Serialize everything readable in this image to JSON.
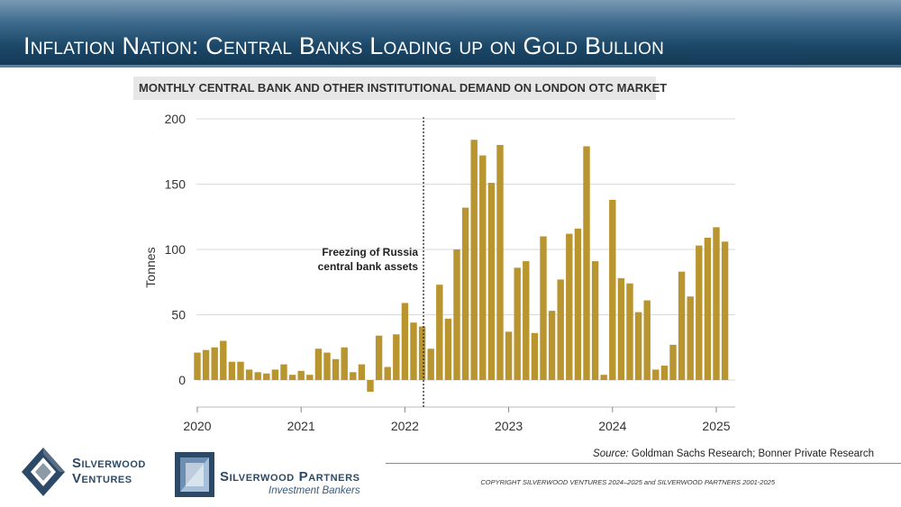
{
  "page": {
    "title": "Inflation Nation: Central Banks Loading up on Gold Bullion"
  },
  "chart_data": {
    "type": "bar",
    "title": "MONTHLY CENTRAL BANK AND OTHER INSTITUTIONAL DEMAND ON LONDON OTC MARKET",
    "xlabel": "",
    "ylabel": "Tonnes",
    "ylim": [
      -20,
      200
    ],
    "yticks": [
      0,
      50,
      100,
      150,
      200
    ],
    "xticks": [
      {
        "label": "2020",
        "index": 0
      },
      {
        "label": "2021",
        "index": 12
      },
      {
        "label": "2022",
        "index": 24
      },
      {
        "label": "2023",
        "index": 36
      },
      {
        "label": "2024",
        "index": 48
      },
      {
        "label": "2025",
        "index": 60
      }
    ],
    "x_start": "2020-01",
    "x_end": "2025-02",
    "categories": [
      "2020-01",
      "2020-02",
      "2020-03",
      "2020-04",
      "2020-05",
      "2020-06",
      "2020-07",
      "2020-08",
      "2020-09",
      "2020-10",
      "2020-11",
      "2020-12",
      "2021-01",
      "2021-02",
      "2021-03",
      "2021-04",
      "2021-05",
      "2021-06",
      "2021-07",
      "2021-08",
      "2021-09",
      "2021-10",
      "2021-11",
      "2021-12",
      "2022-01",
      "2022-02",
      "2022-03",
      "2022-04",
      "2022-05",
      "2022-06",
      "2022-07",
      "2022-08",
      "2022-09",
      "2022-10",
      "2022-11",
      "2022-12",
      "2023-01",
      "2023-02",
      "2023-03",
      "2023-04",
      "2023-05",
      "2023-06",
      "2023-07",
      "2023-08",
      "2023-09",
      "2023-10",
      "2023-11",
      "2023-12",
      "2024-01",
      "2024-02",
      "2024-03",
      "2024-04",
      "2024-05",
      "2024-06",
      "2024-07",
      "2024-08",
      "2024-09",
      "2024-10",
      "2024-11",
      "2024-12",
      "2025-01",
      "2025-02"
    ],
    "values": [
      21,
      23,
      25,
      30,
      14,
      14,
      8,
      6,
      5,
      8,
      12,
      4,
      7,
      4,
      24,
      21,
      16,
      25,
      6,
      12,
      -9,
      34,
      10,
      35,
      59,
      44,
      41,
      24,
      73,
      47,
      100,
      132,
      184,
      172,
      151,
      180,
      37,
      86,
      91,
      36,
      110,
      53,
      77,
      112,
      116,
      179,
      91,
      4,
      138,
      78,
      74,
      52,
      61,
      8,
      11,
      27,
      83,
      64,
      103,
      109,
      117,
      106
    ],
    "annotation": {
      "text_line1": "Freezing of Russia",
      "text_line2": "central bank assets",
      "position": 26.15
    },
    "bar_color": "#b8952e",
    "grid": true
  },
  "footer": {
    "source_label": "Source:",
    "source_text": " Goldman Sachs Research; Bonner Private Research",
    "copyright": "COPYRIGHT SILVERWOOD VENTURES 2024–2025 and SILVERWOOD PARTNERS 2001-2025"
  },
  "logos": {
    "ventures_line1": "Silverwood",
    "ventures_line2": "Ventures",
    "partners_name": "Silverwood Partners",
    "partners_sub": "Investment Bankers",
    "color": "#2c4a67"
  }
}
